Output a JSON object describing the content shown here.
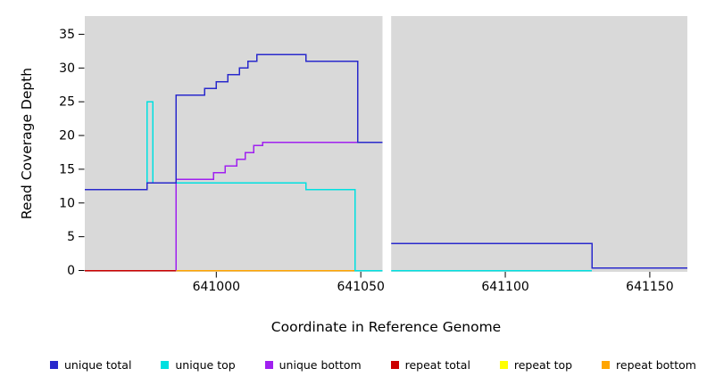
{
  "chart_data": {
    "type": "line",
    "subtype": "step-coverage-plot",
    "title": "",
    "xlabel": "Coordinate in Reference Genome",
    "ylabel": "Read Coverage Depth",
    "xlim": [
      640954.5,
      641163
    ],
    "ylim": [
      -0.2,
      37.7
    ],
    "x_ticks": [
      641000,
      641050,
      641100,
      641150
    ],
    "y_ticks": [
      0,
      5,
      10,
      15,
      20,
      25,
      30,
      35
    ],
    "panel_bg": "#D9D9D9",
    "gap_region": {
      "x0": 641057.5,
      "x1": 641060.5,
      "color": "#FFFFFF"
    },
    "series": [
      {
        "name": "repeat total",
        "color": "#CC0000",
        "segments": [
          [
            [
              640954.5,
              0
            ],
            [
              641057.5,
              0
            ]
          ]
        ]
      },
      {
        "name": "repeat top",
        "color": "#FFFF00",
        "segments": [
          [
            [
              640986,
              0
            ],
            [
              641057.5,
              0
            ]
          ]
        ]
      },
      {
        "name": "repeat bottom",
        "color": "#FFA500",
        "segments": [
          [
            [
              640986,
              0
            ],
            [
              641057.5,
              0
            ]
          ]
        ]
      },
      {
        "name": "unique bottom",
        "color": "#A020F0",
        "segments": [
          [
            [
              640986,
              0
            ],
            [
              640986,
              13.5
            ],
            [
              640999,
              13.5
            ],
            [
              640999,
              14.5
            ],
            [
              641003,
              14.5
            ],
            [
              641003,
              15.5
            ],
            [
              641007,
              15.5
            ],
            [
              641007,
              16.5
            ],
            [
              641010,
              16.5
            ],
            [
              641010,
              17.5
            ],
            [
              641013,
              17.5
            ],
            [
              641013,
              18.5
            ],
            [
              641016,
              18.5
            ],
            [
              641016,
              19
            ],
            [
              641057.5,
              19
            ]
          ]
        ]
      },
      {
        "name": "unique top",
        "color": "#00E0E0",
        "segments": [
          [
            [
              640954.5,
              12
            ],
            [
              640976,
              12
            ],
            [
              640976,
              25
            ],
            [
              640978,
              25
            ],
            [
              640978,
              13
            ],
            [
              641031,
              13
            ],
            [
              641031,
              12
            ],
            [
              641048,
              12
            ],
            [
              641048,
              0
            ],
            [
              641057.5,
              0
            ]
          ],
          [
            [
              641060.5,
              0
            ],
            [
              641130,
              0
            ]
          ]
        ]
      },
      {
        "name": "unique total",
        "color": "#2929CC",
        "segments": [
          [
            [
              640954.5,
              12
            ],
            [
              640976,
              12
            ],
            [
              640976,
              13
            ],
            [
              640986,
              13
            ],
            [
              640986,
              26
            ],
            [
              640996,
              26
            ],
            [
              640996,
              27
            ],
            [
              641000,
              27
            ],
            [
              641000,
              28
            ],
            [
              641004,
              28
            ],
            [
              641004,
              29
            ],
            [
              641008,
              29
            ],
            [
              641008,
              30
            ],
            [
              641011,
              30
            ],
            [
              641011,
              31
            ],
            [
              641014,
              31
            ],
            [
              641014,
              32
            ],
            [
              641031,
              32
            ],
            [
              641031,
              31
            ],
            [
              641049,
              31
            ],
            [
              641049,
              19
            ],
            [
              641057.5,
              19
            ]
          ],
          [
            [
              641060.5,
              4
            ],
            [
              641130,
              4
            ],
            [
              641130,
              0.4
            ],
            [
              641163,
              0.4
            ]
          ]
        ]
      }
    ],
    "legend": [
      {
        "label": "unique total",
        "color": "#2929CC"
      },
      {
        "label": "unique top",
        "color": "#00E0E0"
      },
      {
        "label": "unique bottom",
        "color": "#A020F0"
      },
      {
        "label": "repeat total",
        "color": "#CC0000"
      },
      {
        "label": "repeat top",
        "color": "#FFFF00"
      },
      {
        "label": "repeat bottom",
        "color": "#FFA500"
      }
    ]
  }
}
